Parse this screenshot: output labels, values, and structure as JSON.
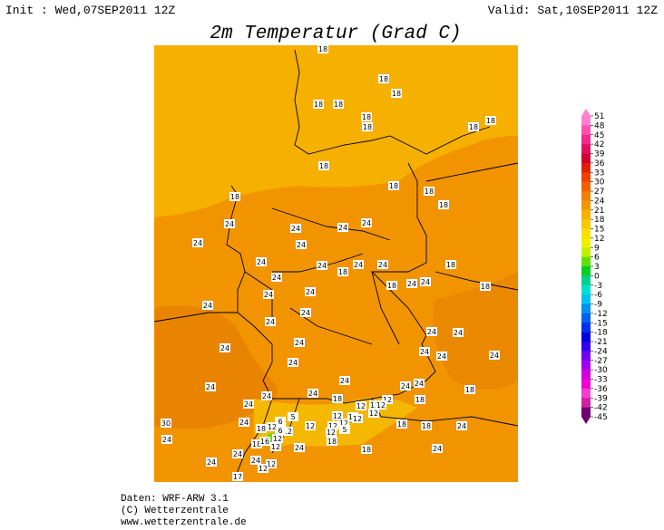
{
  "header": {
    "init": "Init : Wed,07SEP2011 12Z",
    "valid": "Valid: Sat,10SEP2011 12Z",
    "title": "2m Temperatur (Grad C)"
  },
  "colorbar": {
    "labels": [
      51,
      48,
      45,
      42,
      39,
      36,
      33,
      30,
      27,
      24,
      21,
      18,
      15,
      12,
      9,
      6,
      3,
      0,
      -3,
      -6,
      -9,
      -12,
      -15,
      -18,
      -21,
      -24,
      -27,
      -30,
      -33,
      -36,
      -39,
      -42,
      -45
    ],
    "colors": [
      "#ff80d0",
      "#ff50b0",
      "#f02890",
      "#e01060",
      "#d00030",
      "#e02000",
      "#f04000",
      "#f06000",
      "#f08000",
      "#f09800",
      "#f8b000",
      "#f8c800",
      "#f8e000",
      "#f0f000",
      "#c0f000",
      "#60e000",
      "#00d020",
      "#00d090",
      "#00e0d0",
      "#00c0f0",
      "#0090f0",
      "#0060f0",
      "#0030f0",
      "#0000e0",
      "#3000f0",
      "#7000f0",
      "#a000f0",
      "#d000e0",
      "#f000d0",
      "#f040d0",
      "#d020a0",
      "#700070"
    ]
  },
  "stations": [
    18,
    18,
    18,
    18,
    18,
    18,
    18,
    18,
    18,
    18,
    18,
    18,
    18,
    18,
    24,
    24,
    24,
    24,
    24,
    24,
    24,
    24,
    18,
    24,
    24,
    24,
    24,
    24,
    18,
    24,
    24,
    18,
    18,
    24,
    24,
    24,
    24,
    24,
    24,
    24,
    24,
    24,
    24,
    24,
    24,
    24,
    24,
    24,
    18,
    24,
    24,
    18,
    12,
    12,
    12,
    18,
    24,
    12,
    12,
    24,
    18,
    6,
    12,
    5,
    12,
    12,
    12,
    12,
    12,
    12,
    30,
    6,
    18,
    16,
    12,
    12,
    24,
    12,
    5,
    18,
    24,
    18,
    18,
    24,
    12,
    24,
    24,
    24,
    12,
    12,
    17,
    24,
    18
  ],
  "footer": {
    "data": "Daten: WRF-ARW 3.1",
    "copyright": "(C) Wetterzentrale",
    "url": "www.wetterzentrale.de"
  }
}
